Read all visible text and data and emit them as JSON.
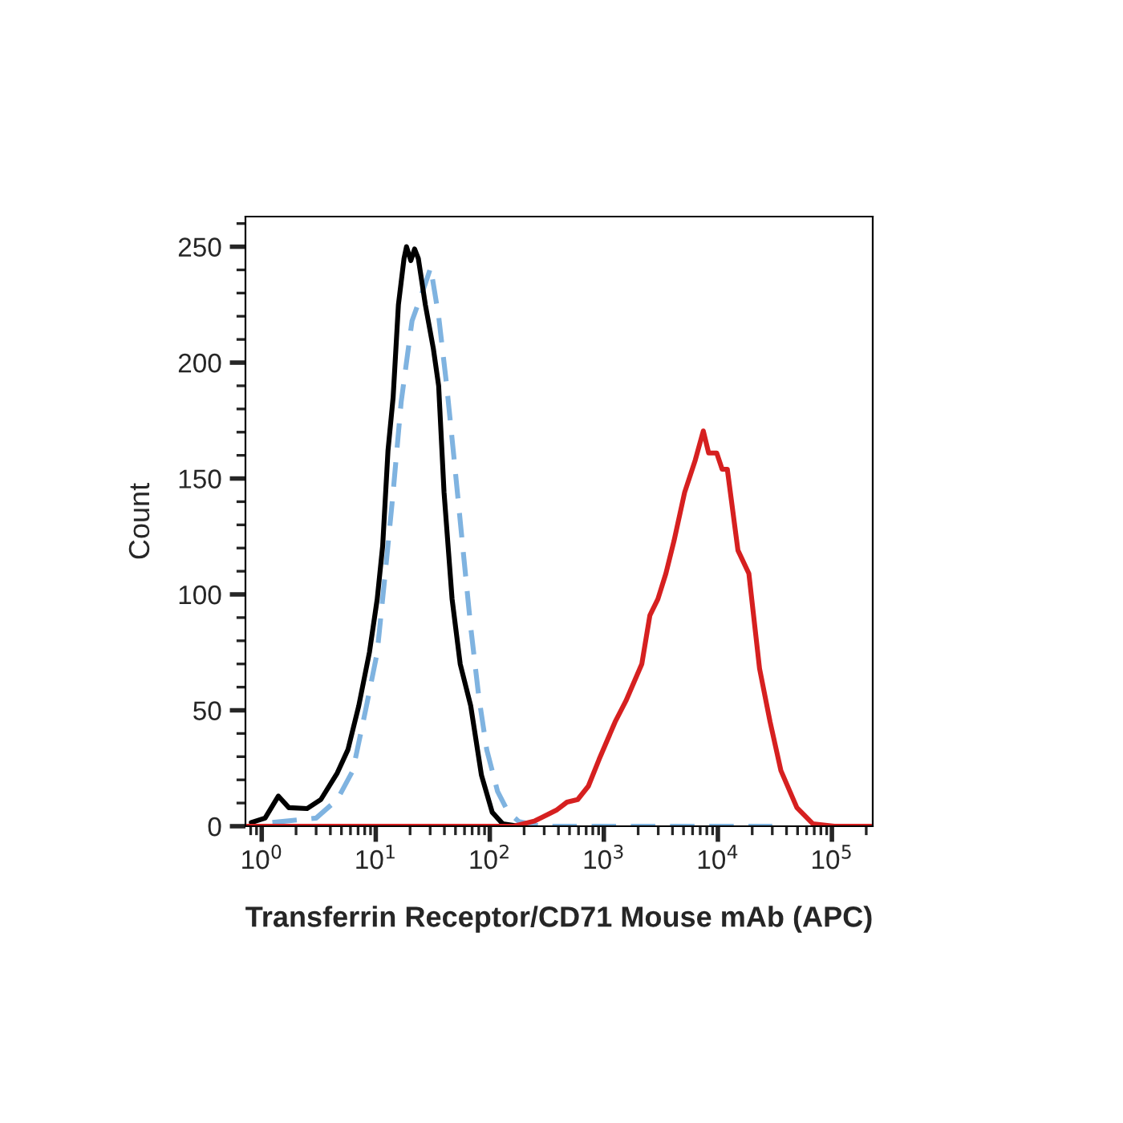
{
  "chart_data": {
    "type": "line",
    "xlabel": "Transferrin Receptor/CD71 Mouse mAb (APC)",
    "ylabel": "Count",
    "log": "x",
    "xlim": [
      0.72,
      228000
    ],
    "ylim": [
      0,
      263
    ],
    "xticks": [
      {
        "value": 1,
        "label": "10$^{0}$"
      },
      {
        "value": 10,
        "label": "10$^{1}$"
      },
      {
        "value": 100,
        "label": "10$^{2}$"
      },
      {
        "value": 1000,
        "label": "10$^{3}$"
      },
      {
        "value": 10000,
        "label": "10$^{4}$"
      },
      {
        "value": 100000,
        "label": "10$^{5}$"
      }
    ],
    "yticks": [
      0,
      50,
      100,
      150,
      200,
      250
    ],
    "grid": false,
    "series": [
      {
        "color": "#7fb3e0",
        "line_style": "dashed",
        "x": [
          1.24,
          3.0,
          4.6,
          6.3,
          8.3,
          10.3,
          12.1,
          14.2,
          16.7,
          20.8,
          27.2,
          30.3,
          35.6,
          41.9,
          49.2,
          57.8,
          68,
          80,
          94,
          117,
          145,
          180,
          277,
          1000,
          30000
        ],
        "values": [
          1.6,
          3.5,
          11.5,
          24,
          52,
          75,
          109,
          144,
          183,
          218,
          234,
          241,
          220,
          190,
          156,
          121,
          86,
          56,
          33,
          15,
          6,
          2,
          0,
          0,
          0
        ]
      },
      {
        "color": "#000000",
        "line_style": "solid",
        "x": [
          0.81,
          1.07,
          1.4,
          1.73,
          2.5,
          3.3,
          4.6,
          5.7,
          7.1,
          8.8,
          10.3,
          11.5,
          12.8,
          14.2,
          15.8,
          17.7,
          18.6,
          20.3,
          21.9,
          23.6,
          27.2,
          32,
          35.6,
          39.7,
          46.7,
          55,
          68,
          84.5,
          105,
          130,
          180
        ],
        "values": [
          1.6,
          3.5,
          13,
          8,
          7.6,
          11.5,
          23,
          33,
          52,
          75,
          98,
          121,
          162,
          185,
          225,
          245,
          250,
          244,
          249,
          245,
          225,
          206,
          190,
          144,
          98,
          70,
          52,
          22,
          6,
          1,
          0
        ]
      },
      {
        "color": "#d62020",
        "line_style": "solid",
        "x": [
          0.75,
          50,
          162,
          249,
          383,
          475,
          590,
          732,
          908,
          1256,
          1560,
          2153,
          2535,
          2978,
          3500,
          4120,
          5110,
          6340,
          7450,
          8300,
          9770,
          10900,
          12100,
          15000,
          18700,
          23200,
          28700,
          35700,
          49300,
          68200,
          105000,
          220000
        ],
        "values": [
          0,
          0,
          0,
          2.3,
          6.9,
          10.4,
          11.5,
          17.3,
          28.8,
          45,
          54,
          70,
          91,
          98,
          109,
          123,
          144,
          158,
          170.5,
          161,
          161,
          154,
          154,
          119,
          109,
          68,
          45,
          24,
          8,
          1,
          0,
          0
        ]
      }
    ]
  }
}
